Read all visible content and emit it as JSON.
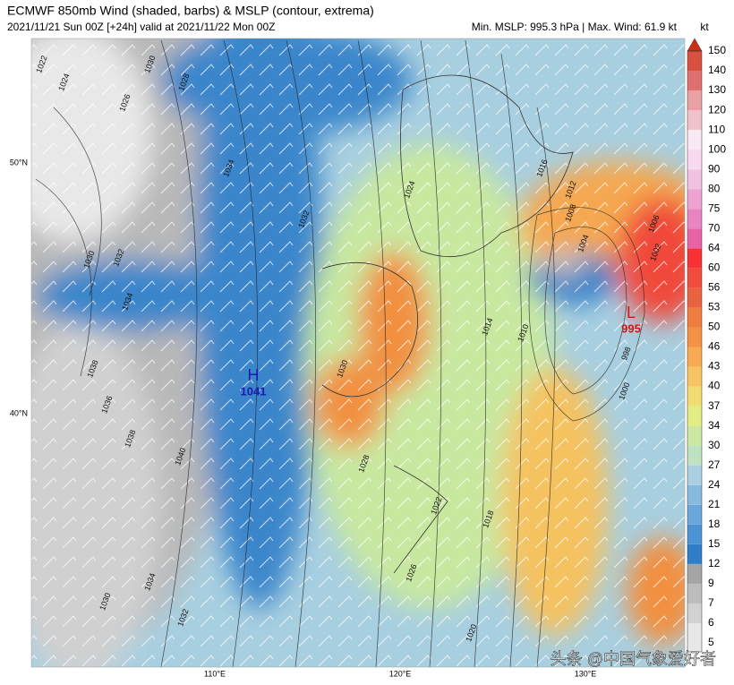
{
  "header": {
    "title": "ECMWF 850mb Wind (shaded, barbs) & MSLP (contour, extrema)",
    "subtitle": "2021/11/21 Sun 00Z [+24h] valid at 2021/11/22 Mon 00Z",
    "stats": "Min. MSLP: 995.3 hPa | Max. Wind: 61.9 kt"
  },
  "colorbar": {
    "unit": "kt",
    "ticks": [
      5,
      6,
      7,
      9,
      12,
      15,
      18,
      21,
      24,
      27,
      30,
      34,
      37,
      40,
      43,
      46,
      50,
      53,
      56,
      60,
      64,
      70,
      75,
      80,
      90,
      100,
      110,
      120,
      130,
      140,
      150
    ],
    "colors": [
      "#e8e8e8",
      "#d2d2d2",
      "#bcbcbc",
      "#a4a4a4",
      "#2f7fc8",
      "#4b93d3",
      "#69a6dc",
      "#88b9df",
      "#a9cfe0",
      "#bfe3c2",
      "#cbe9a2",
      "#e2ed84",
      "#f3dc72",
      "#f6c462",
      "#f6ab52",
      "#f39244",
      "#ef7c40",
      "#e96340",
      "#f04b3b",
      "#f83232",
      "#e862a8",
      "#e884c2",
      "#eda2d2",
      "#f1c2e2",
      "#f8d9f0",
      "#f9e9f5",
      "#f1c1cc",
      "#e9a1a1",
      "#e07070",
      "#d85040",
      "#c83010"
    ]
  },
  "lat_labels": [
    "50°N",
    "40°N"
  ],
  "lon_labels": [
    "110°E",
    "120°E",
    "130°E"
  ],
  "centers": [
    {
      "symbol": "H",
      "value": "1041"
    },
    {
      "symbol": "L",
      "value": "995"
    }
  ],
  "contour_labels": [
    "1022",
    "1024",
    "1030",
    "1028",
    "1026",
    "1034",
    "1032",
    "1024",
    "1016",
    "1012",
    "1008",
    "1004",
    "1006",
    "1002",
    "1014",
    "1010",
    "998",
    "1000",
    "1030",
    "1038",
    "1036",
    "1034",
    "1030",
    "1032",
    "1028",
    "1022",
    "1018",
    "1026",
    "1020",
    "1040",
    "1038",
    "1034",
    "1032",
    "1030"
  ],
  "watermark": "头条 @中国气象爱好者"
}
